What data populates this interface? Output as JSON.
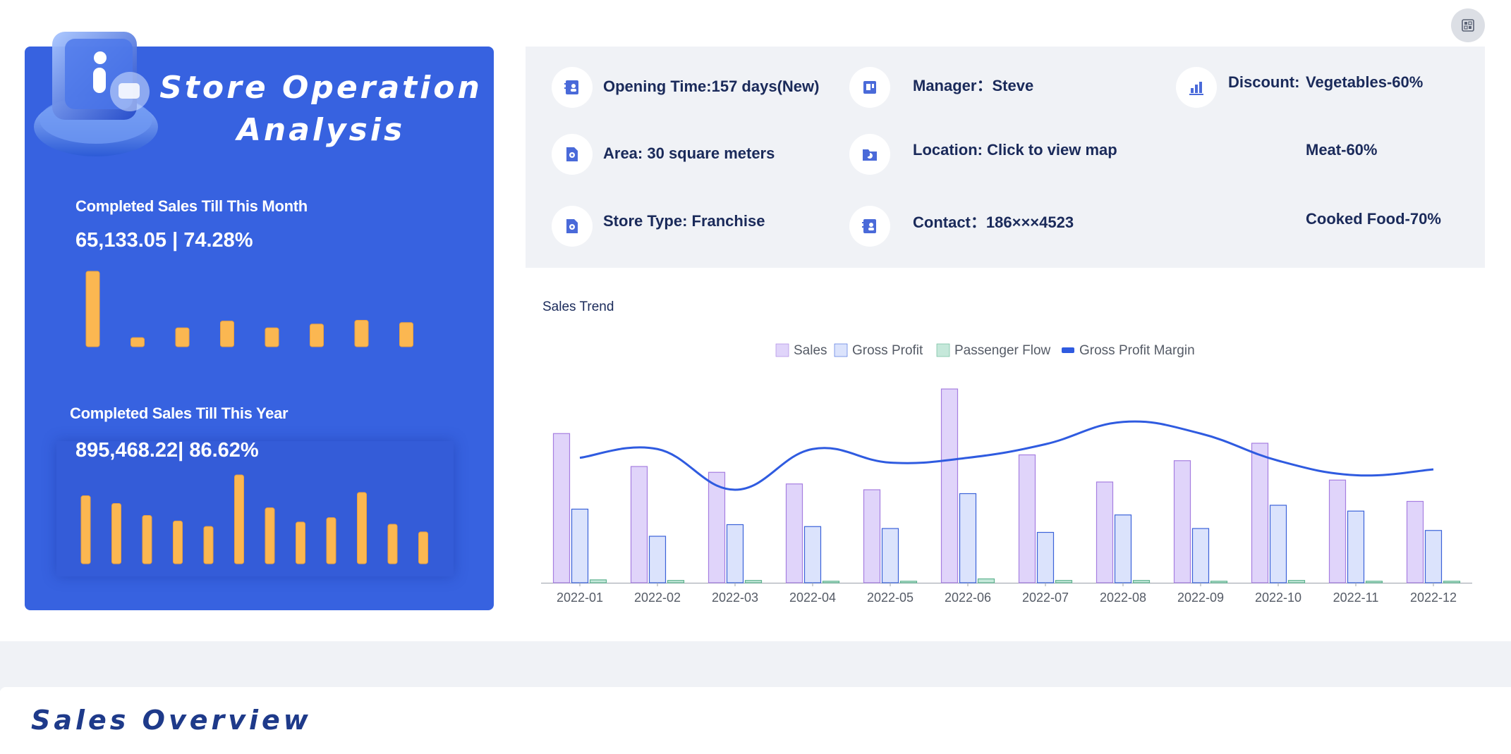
{
  "panel": {
    "title_line1": "Store Operation",
    "title_line2": "Analysis",
    "month_label": "Completed Sales Till This Month",
    "month_value": "65,133.05 | 74.28%",
    "year_label": "Completed Sales Till This Year",
    "year_value": "895,468.22| 86.62%"
  },
  "month_bars": [
    100,
    12,
    25,
    34,
    25,
    30,
    35,
    32
  ],
  "year_bars": [
    62,
    55,
    44,
    39,
    34,
    81,
    51,
    38,
    42,
    65,
    36,
    29
  ],
  "info": {
    "opening_time": "Opening Time:157 days(New)",
    "area": "Area: 30 square meters",
    "store_type": "Store Type: Franchise",
    "manager": "Manager：Steve",
    "location": "Location: Click to view map",
    "contact": "Contact：186×××4523",
    "discount_label": "Discount:",
    "discount_vegetables": "Vegetables-60%",
    "discount_meat": "Meat-60%",
    "discount_cooked": "Cooked Food-70%"
  },
  "chart_data": {
    "type": "bar",
    "title": "Sales Trend",
    "categories": [
      "2022-01",
      "2022-02",
      "2022-03",
      "2022-04",
      "2022-05",
      "2022-06",
      "2022-07",
      "2022-08",
      "2022-09",
      "2022-10",
      "2022-11",
      "2022-12"
    ],
    "series": [
      {
        "name": "Sales",
        "type": "bar",
        "color": "#e0d4fa",
        "stroke": "#a67ee0",
        "values": [
          77,
          60,
          57,
          51,
          48,
          100,
          66,
          52,
          63,
          72,
          53,
          42
        ]
      },
      {
        "name": "Gross Profit",
        "type": "bar",
        "color": "#dbe3fc",
        "stroke": "#3b62d9",
        "values": [
          38,
          24,
          30,
          29,
          28,
          46,
          26,
          35,
          28,
          40,
          37,
          27
        ]
      },
      {
        "name": "Passenger Flow",
        "type": "bar",
        "color": "#c5e8da",
        "stroke": "#5fb38f",
        "values": [
          1.5,
          1.2,
          1.2,
          0.8,
          0.8,
          2.0,
          1.2,
          1.2,
          0.8,
          1.2,
          0.8,
          0.8
        ]
      },
      {
        "name": "Gross Profit Margin",
        "type": "line",
        "color": "#2f5be0",
        "values": [
          64.5,
          69,
          48,
          69,
          62,
          64.5,
          71.5,
          83,
          77,
          63,
          55.5,
          58.5
        ]
      }
    ],
    "ylim": [
      0,
      100
    ],
    "legend_position": "top-center",
    "grid": false
  },
  "overview": {
    "title": "Sales Overview"
  }
}
